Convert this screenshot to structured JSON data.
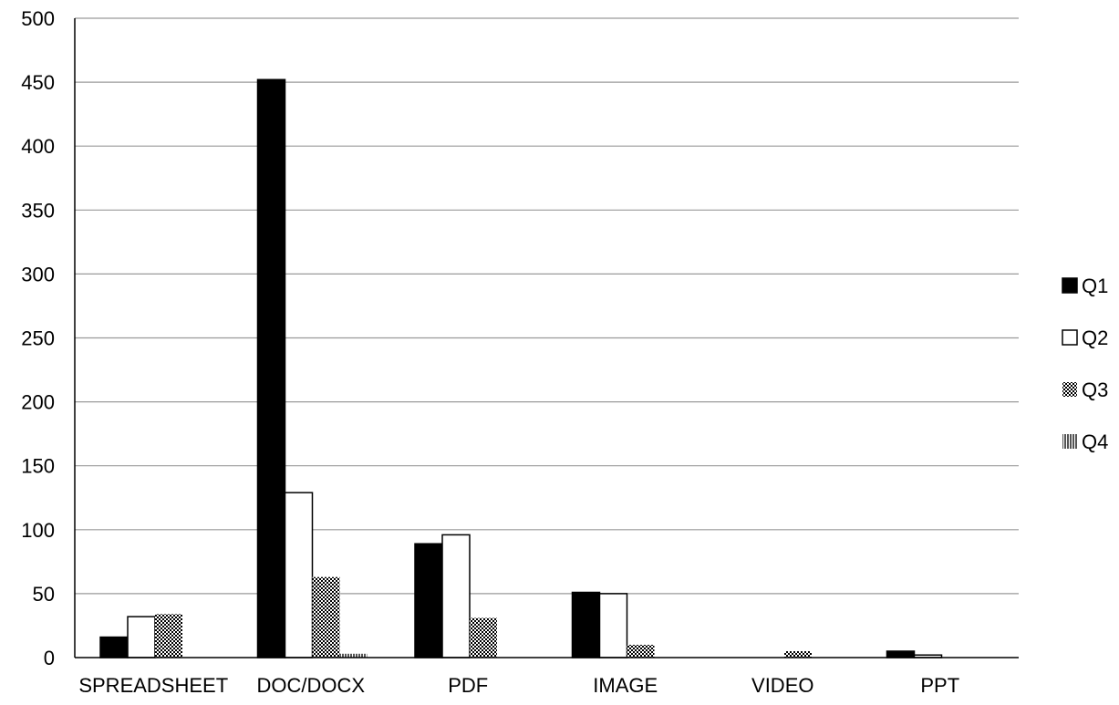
{
  "chart_data": {
    "type": "bar",
    "title": "",
    "xlabel": "",
    "ylabel": "",
    "ylim": [
      0,
      500
    ],
    "ytick_step": 50,
    "grid": true,
    "legend_position": "right",
    "categories": [
      "SPREADSHEET",
      "DOC/DOCX",
      "PDF",
      "IMAGE",
      "VIDEO",
      "PPT"
    ],
    "series": [
      {
        "name": "Q1",
        "pattern": "solid-black",
        "values": [
          16,
          452,
          89,
          51,
          0,
          5
        ]
      },
      {
        "name": "Q2",
        "pattern": "white-outline",
        "values": [
          32,
          129,
          96,
          50,
          0,
          2
        ]
      },
      {
        "name": "Q3",
        "pattern": "checker",
        "values": [
          34,
          63,
          31,
          10,
          5,
          0
        ]
      },
      {
        "name": "Q4",
        "pattern": "vertical-stripes",
        "values": [
          0,
          3,
          0,
          0,
          0,
          0
        ]
      }
    ],
    "colors": {
      "axis": "#000000",
      "grid": "#9a9a9a",
      "bar_fill_dark": "#000000",
      "bar_fill_light": "#ffffff"
    }
  }
}
